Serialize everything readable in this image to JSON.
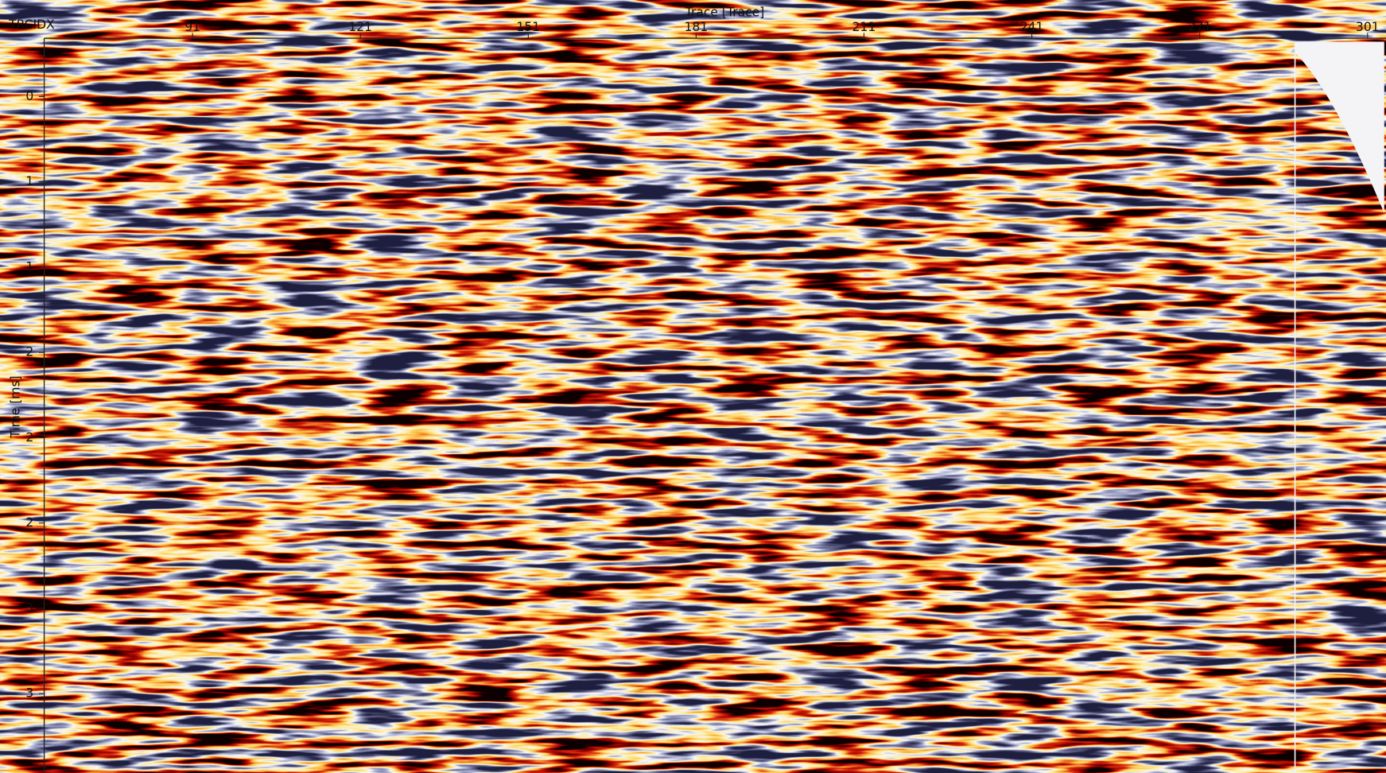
{
  "chart_data": {
    "type": "seismic",
    "x_label": "Trace [Trace]",
    "y_label": "Time [ms]",
    "corner_label": "TRCIDX",
    "xlim": [
      64.8,
      304.3
    ],
    "xticks": [
      91,
      121,
      151,
      181,
      211,
      241,
      271,
      301
    ],
    "ylim": [
      0.03,
      3.63
    ],
    "yticks": [
      {
        "value": 0.3,
        "label": "0"
      },
      {
        "value": 0.72,
        "label": "1"
      },
      {
        "value": 1.14,
        "label": "1"
      },
      {
        "value": 1.56,
        "label": "2"
      },
      {
        "value": 1.98,
        "label": "2"
      },
      {
        "value": 2.4,
        "label": "2"
      },
      {
        "value": 2.82,
        "label": "3"
      },
      {
        "value": 3.24,
        "label": "3"
      }
    ]
  }
}
